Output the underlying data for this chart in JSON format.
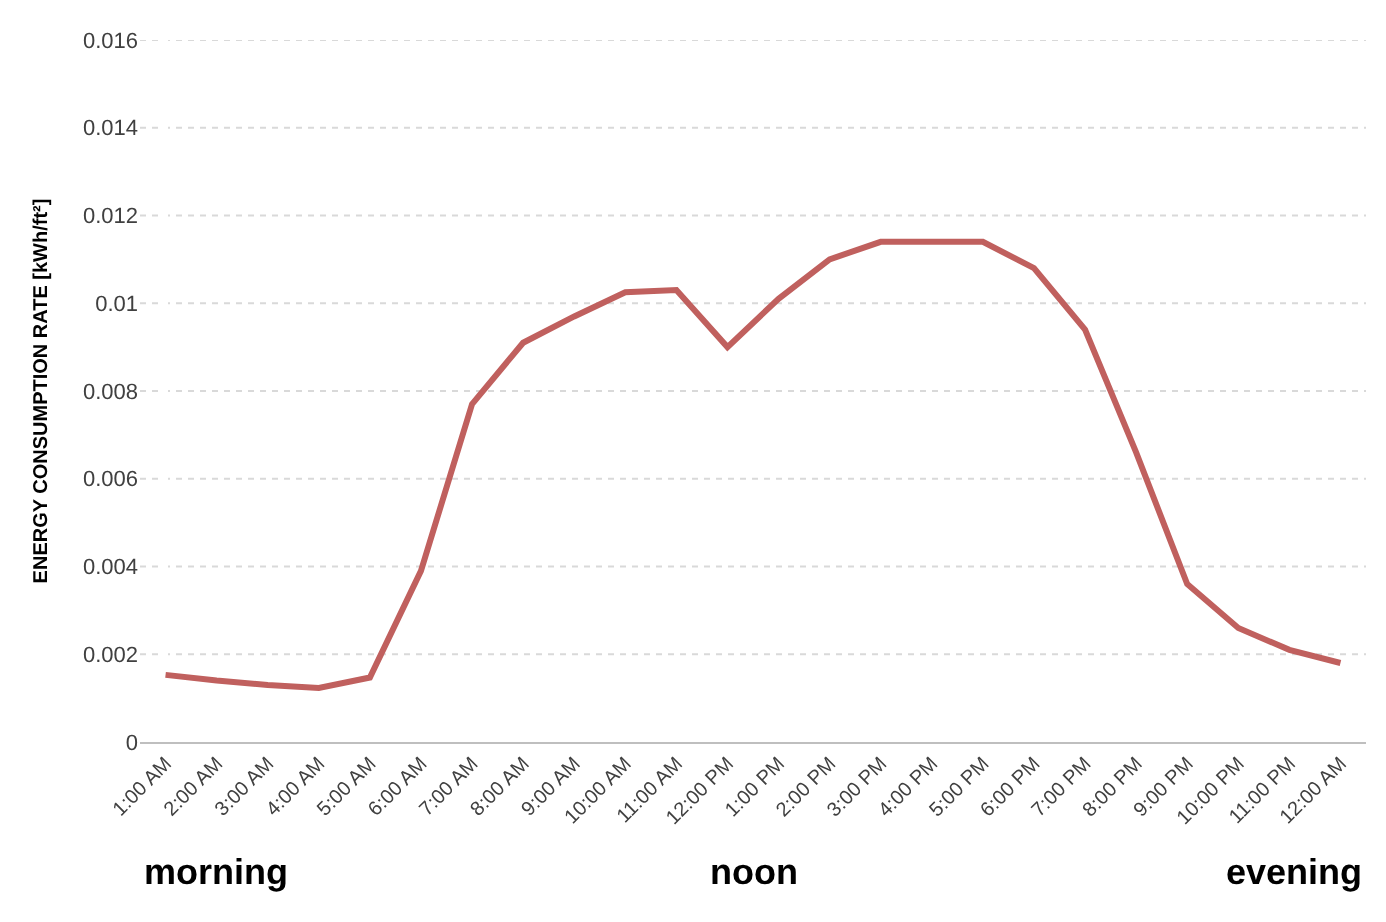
{
  "chart_data": {
    "type": "line",
    "ylabel": "ENERGY CONSUMPTION RATE [kWh/ft²]",
    "categories": [
      "1:00 AM",
      "2:00 AM",
      "3:00 AM",
      "4:00 AM",
      "5:00 AM",
      "6:00 AM",
      "7:00 AM",
      "8:00 AM",
      "9:00 AM",
      "10:00 AM",
      "11:00 AM",
      "12:00 PM",
      "1:00 PM",
      "2:00 PM",
      "3:00 PM",
      "4:00 PM",
      "5:00 PM",
      "6:00 PM",
      "7:00 PM",
      "8:00 PM",
      "9:00 PM",
      "10:00 PM",
      "11:00 PM",
      "12:00 AM"
    ],
    "series": [
      {
        "color": "#c0605e",
        "values": [
          0.00153,
          0.0014,
          0.0013,
          0.00123,
          0.00147,
          0.0039,
          0.0077,
          0.0091,
          0.0097,
          0.01025,
          0.0103,
          0.009,
          0.0101,
          0.011,
          0.0114,
          0.0114,
          0.0114,
          0.0108,
          0.0094,
          0.0066,
          0.0036,
          0.0026,
          0.0021,
          0.0018
        ]
      }
    ],
    "ylim": [
      0,
      0.016
    ],
    "yticks": [
      0,
      0.002,
      0.004,
      0.006,
      0.008,
      0.01,
      0.012,
      0.014,
      0.016
    ],
    "grid": "y",
    "marker": "none",
    "line_style": "solid",
    "annotations": [
      "morning",
      "noon",
      "evening"
    ]
  }
}
